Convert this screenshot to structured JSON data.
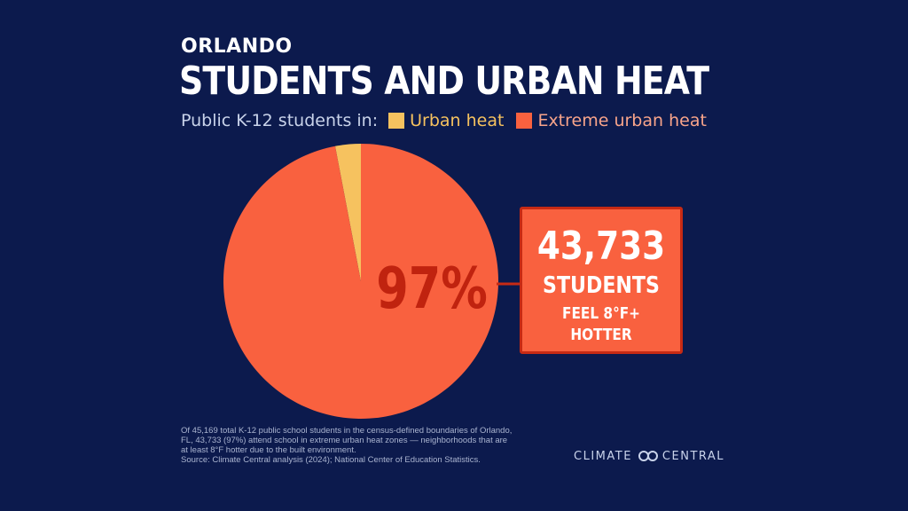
{
  "header": {
    "city": "ORLANDO",
    "title": "STUDENTS AND URBAN HEAT"
  },
  "legend": {
    "prefix": "Public K-12 students in:",
    "items": [
      {
        "label": "Urban heat",
        "color": "#f6c25f"
      },
      {
        "label": "Extreme urban heat",
        "color": "#f9613f"
      }
    ]
  },
  "chart_data": {
    "type": "pie",
    "title": "STUDENTS AND URBAN HEAT",
    "slices": [
      {
        "label": "Urban heat",
        "value": 3,
        "color": "#f6c25f"
      },
      {
        "label": "Extreme urban heat",
        "value": 97,
        "color": "#f9613f"
      }
    ],
    "center_label": "97%",
    "center_label_color": "#c0230f",
    "legend_position": "top"
  },
  "callout": {
    "number": "43,733",
    "label": "STUDENTS",
    "sub": "FEEL 8°F+ HOTTER"
  },
  "footnote": {
    "lines": [
      "Of 45,169 total K-12 public school students in the census-defined boundaries of Orlando,",
      "FL, 43,733 (97%) attend school in extreme urban heat zones — neighborhoods that are",
      "at least 8°F hotter due to the built environment.",
      "Source: Climate Central analysis (2024); National Center of Education Statistics."
    ]
  },
  "logo": {
    "left": "CLIMATE",
    "right": "CENTRAL",
    "icon": "infinity-icon"
  },
  "colors": {
    "background": "#0c1a4d",
    "accent": "#f9613f",
    "accent_dark": "#c72a14"
  }
}
